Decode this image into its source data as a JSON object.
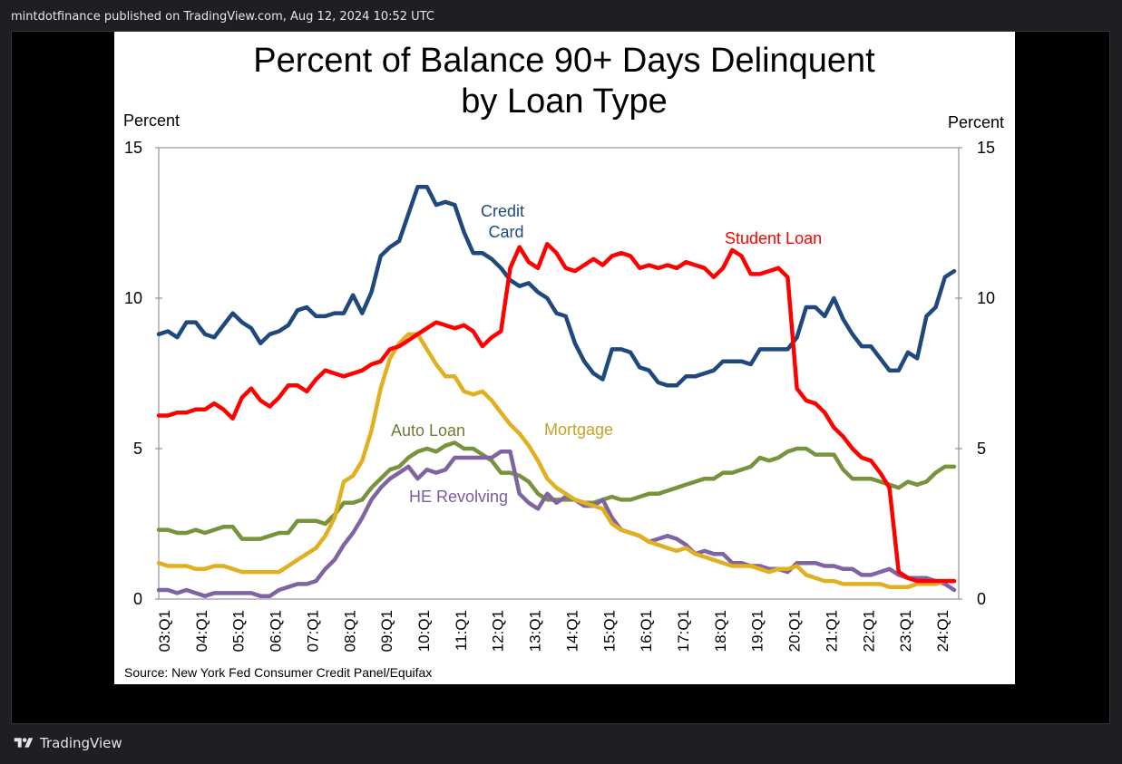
{
  "header": {
    "published_line": "mintdotfinance published on TradingView.com, Aug 12, 2024 10:52 UTC"
  },
  "footer": {
    "brand": "TradingView",
    "logo_icon": "tradingview-logo-icon"
  },
  "chart_data": {
    "type": "line",
    "title_line1": "Percent of Balance 90+ Days Delinquent",
    "title_line2": "by Loan Type",
    "ylabel_left": "Percent",
    "ylabel_right": "Percent",
    "ylim": [
      0,
      15
    ],
    "y_ticks": [
      "0",
      "5",
      "10",
      "15"
    ],
    "x_ticks": [
      "03:Q1",
      "04:Q1",
      "05:Q1",
      "06:Q1",
      "07:Q1",
      "08:Q1",
      "09:Q1",
      "10:Q1",
      "11:Q1",
      "12:Q1",
      "13:Q1",
      "14:Q1",
      "15:Q1",
      "16:Q1",
      "17:Q1",
      "18:Q1",
      "19:Q1",
      "20:Q1",
      "21:Q1",
      "22:Q1",
      "23:Q1",
      "24:Q1"
    ],
    "x_start": "2003-Q1",
    "grid": false,
    "source": "Source: New York Fed Consumer Credit Panel/Equifax",
    "series": [
      {
        "name": "Credit Card",
        "label_line1": "Credit",
        "label_line2": "Card",
        "color": "#1f497d",
        "values": [
          8.8,
          8.9,
          8.7,
          9.2,
          9.2,
          8.8,
          8.7,
          9.1,
          9.5,
          9.2,
          9.0,
          8.5,
          8.8,
          8.9,
          9.1,
          9.6,
          9.7,
          9.4,
          9.4,
          9.5,
          9.5,
          10.1,
          9.5,
          10.2,
          11.4,
          11.7,
          11.9,
          12.8,
          13.7,
          13.7,
          13.1,
          13.2,
          13.1,
          12.2,
          11.5,
          11.5,
          11.3,
          11.0,
          10.6,
          10.4,
          10.5,
          10.2,
          10.0,
          9.5,
          9.4,
          8.5,
          7.9,
          7.5,
          7.3,
          8.3,
          8.3,
          8.2,
          7.7,
          7.6,
          7.2,
          7.1,
          7.1,
          7.4,
          7.4,
          7.5,
          7.6,
          7.9,
          7.9,
          7.9,
          7.8,
          8.3,
          8.3,
          8.3,
          8.3,
          8.7,
          9.7,
          9.7,
          9.4,
          10.0,
          9.3,
          8.8,
          8.4,
          8.4,
          8.0,
          7.6,
          7.6,
          8.2,
          8.0,
          9.4,
          9.7,
          10.7,
          10.9
        ]
      },
      {
        "name": "Student Loan",
        "label_line1": "Student Loan",
        "color": "#ff0000",
        "values": [
          6.1,
          6.1,
          6.2,
          6.2,
          6.3,
          6.3,
          6.5,
          6.3,
          6.0,
          6.7,
          7.0,
          6.6,
          6.4,
          6.7,
          7.1,
          7.1,
          6.9,
          7.3,
          7.6,
          7.5,
          7.4,
          7.5,
          7.6,
          7.8,
          7.9,
          8.3,
          8.4,
          8.6,
          8.8,
          9.0,
          9.2,
          9.1,
          9.0,
          9.1,
          8.9,
          8.4,
          8.7,
          8.9,
          11.0,
          11.7,
          11.2,
          11.0,
          11.8,
          11.5,
          11.0,
          10.9,
          11.1,
          11.3,
          11.1,
          11.4,
          11.5,
          11.4,
          11.0,
          11.1,
          11.0,
          11.1,
          11.0,
          11.2,
          11.1,
          11.0,
          10.7,
          11.0,
          11.6,
          11.4,
          10.8,
          10.8,
          10.9,
          11.0,
          10.7,
          7.0,
          6.6,
          6.5,
          6.2,
          5.7,
          5.4,
          5.0,
          4.7,
          4.6,
          4.2,
          3.7,
          0.9,
          0.7,
          0.6,
          0.6,
          0.6,
          0.6,
          0.6
        ]
      },
      {
        "name": "Mortgage",
        "label_line1": "Mortgage",
        "color": "#e0b020",
        "values": [
          1.2,
          1.1,
          1.1,
          1.1,
          1.0,
          1.0,
          1.1,
          1.1,
          1.0,
          0.9,
          0.9,
          0.9,
          0.9,
          0.9,
          1.1,
          1.3,
          1.5,
          1.7,
          2.1,
          2.7,
          3.9,
          4.1,
          4.6,
          5.6,
          7.0,
          8.0,
          8.5,
          8.8,
          8.8,
          8.3,
          7.8,
          7.4,
          7.4,
          6.9,
          6.8,
          6.9,
          6.6,
          6.2,
          5.8,
          5.5,
          5.1,
          4.6,
          4.0,
          3.7,
          3.5,
          3.3,
          3.2,
          3.1,
          3.0,
          2.5,
          2.3,
          2.2,
          2.1,
          1.9,
          1.8,
          1.7,
          1.6,
          1.7,
          1.5,
          1.4,
          1.3,
          1.2,
          1.1,
          1.1,
          1.1,
          1.0,
          0.9,
          1.0,
          1.0,
          1.1,
          0.8,
          0.7,
          0.6,
          0.6,
          0.5,
          0.5,
          0.5,
          0.5,
          0.5,
          0.4,
          0.4,
          0.4,
          0.5,
          0.5,
          0.5,
          0.6,
          0.6
        ]
      },
      {
        "name": "Auto Loan",
        "label_line1": "Auto Loan",
        "color": "#77933c",
        "values": [
          2.3,
          2.3,
          2.2,
          2.2,
          2.3,
          2.2,
          2.3,
          2.4,
          2.4,
          2.0,
          2.0,
          2.0,
          2.1,
          2.2,
          2.2,
          2.6,
          2.6,
          2.6,
          2.5,
          2.8,
          3.2,
          3.2,
          3.3,
          3.7,
          4.0,
          4.3,
          4.4,
          4.7,
          4.9,
          5.0,
          4.9,
          5.1,
          5.2,
          5.0,
          5.0,
          4.8,
          4.6,
          4.2,
          4.2,
          4.1,
          3.9,
          3.5,
          3.3,
          3.3,
          3.3,
          3.3,
          3.2,
          3.2,
          3.3,
          3.4,
          3.3,
          3.3,
          3.4,
          3.5,
          3.5,
          3.6,
          3.7,
          3.8,
          3.9,
          4.0,
          4.0,
          4.2,
          4.2,
          4.3,
          4.4,
          4.7,
          4.6,
          4.7,
          4.9,
          5.0,
          5.0,
          4.8,
          4.8,
          4.8,
          4.3,
          4.0,
          4.0,
          4.0,
          3.9,
          3.8,
          3.7,
          3.9,
          3.8,
          3.9,
          4.2,
          4.4,
          4.4
        ]
      },
      {
        "name": "HE Revolving",
        "label_line1": "HE Revolving",
        "color": "#8064a2",
        "values": [
          0.3,
          0.3,
          0.2,
          0.3,
          0.2,
          0.1,
          0.2,
          0.2,
          0.2,
          0.2,
          0.2,
          0.1,
          0.1,
          0.3,
          0.4,
          0.5,
          0.5,
          0.6,
          1.0,
          1.3,
          1.8,
          2.2,
          2.7,
          3.3,
          3.7,
          4.0,
          4.2,
          4.4,
          4.0,
          4.3,
          4.2,
          4.3,
          4.7,
          4.7,
          4.7,
          4.7,
          4.7,
          4.9,
          4.9,
          3.5,
          3.2,
          3.0,
          3.5,
          3.2,
          3.4,
          3.3,
          3.1,
          3.1,
          3.3,
          2.7,
          2.3,
          2.2,
          2.1,
          1.9,
          2.0,
          2.1,
          2.0,
          1.8,
          1.5,
          1.6,
          1.5,
          1.5,
          1.2,
          1.2,
          1.1,
          1.1,
          1.0,
          1.0,
          0.9,
          1.2,
          1.2,
          1.2,
          1.1,
          1.1,
          1.0,
          1.0,
          0.8,
          0.8,
          0.9,
          1.0,
          0.8,
          0.7,
          0.7,
          0.7,
          0.6,
          0.5,
          0.3
        ]
      }
    ]
  }
}
